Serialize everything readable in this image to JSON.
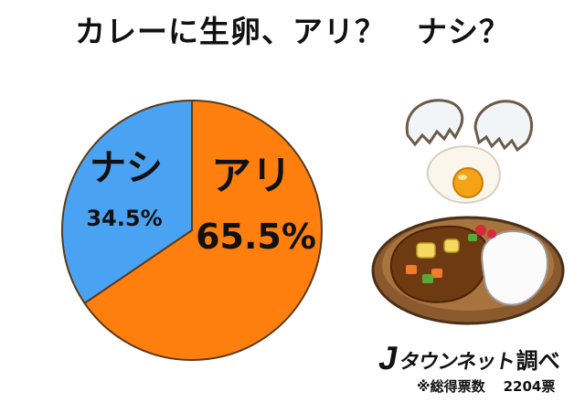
{
  "title": "カレーに生卵、アリ？　ナシ？",
  "chart_data": {
    "type": "pie",
    "title": "カレーに生卵、アリ？　ナシ？",
    "slices": [
      {
        "label": "アリ",
        "value": 65.5,
        "display": "65.5%",
        "color": "#ff7f0e"
      },
      {
        "label": "ナシ",
        "value": 34.5,
        "display": "34.5%",
        "color": "#4aa3f2"
      }
    ],
    "start": "12 o'clock, clockwise"
  },
  "footer": {
    "logo_mark": "J",
    "logo_text": "タウンネット",
    "logo_suffix": "調べ",
    "note_label": "※総得票数",
    "total_votes": "2204票"
  },
  "colors": {
    "ari": "#ff7f0e",
    "nashi": "#4aa3f2",
    "stroke": "#5a3a1a"
  },
  "illustrations": [
    "raw-egg-cracking-icon",
    "curry-rice-plate-icon"
  ]
}
